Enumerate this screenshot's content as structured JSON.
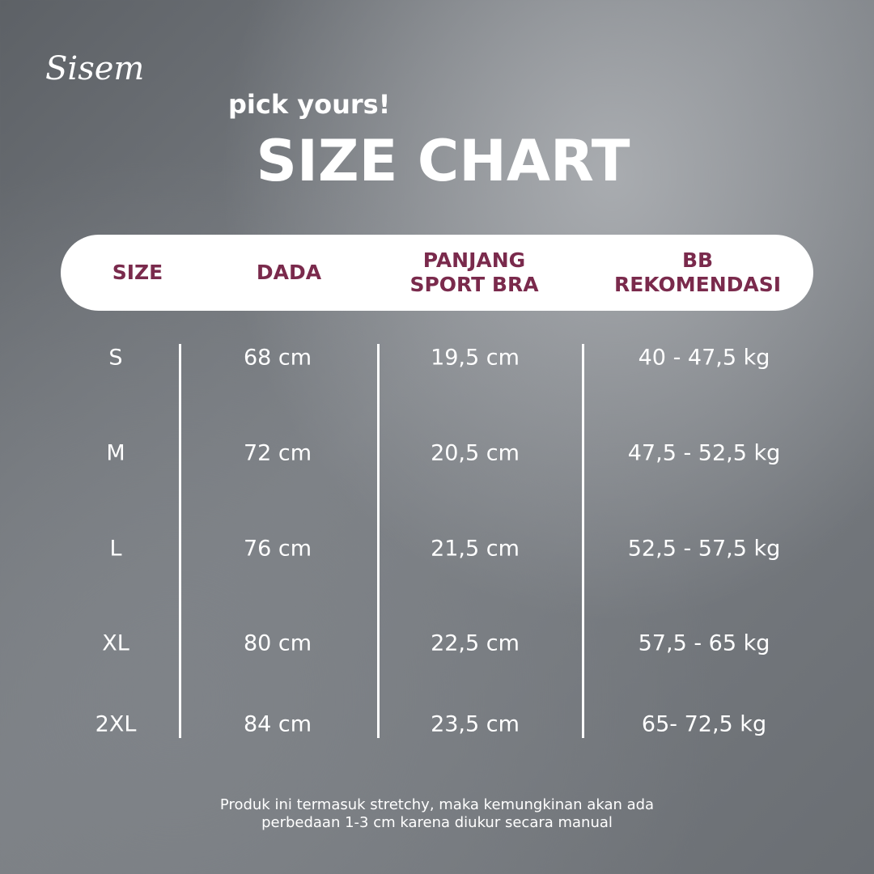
{
  "brand": "Sisem",
  "subtitle": "pick yours!",
  "title": "SIZE CHART",
  "table": {
    "headers": [
      [
        "SIZE"
      ],
      [
        "DADA"
      ],
      [
        "PANJANG",
        "SPORT BRA"
      ],
      [
        "BB",
        "REKOMENDASI"
      ]
    ],
    "rows": [
      [
        "S",
        "68 cm",
        "19,5 cm",
        "40 - 47,5 kg"
      ],
      [
        "M",
        "72 cm",
        "20,5 cm",
        "47,5 - 52,5 kg"
      ],
      [
        "L",
        "76 cm",
        "21,5 cm",
        "52,5 - 57,5 kg"
      ],
      [
        "XL",
        "80 cm",
        "22,5 cm",
        "57,5 - 65 kg"
      ],
      [
        "2XL",
        "84 cm",
        "23,5 cm",
        "65- 72,5 kg"
      ]
    ]
  },
  "footnote": [
    "Produk ini termasuk stretchy, maka kemungkinan akan ada",
    "perbedaan 1-3 cm karena diukur secara manual"
  ]
}
